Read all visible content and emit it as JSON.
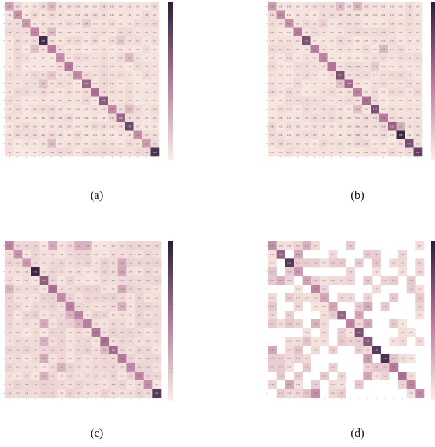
{
  "figure": {
    "panels": [
      {
        "id": "a",
        "caption": "(a)"
      },
      {
        "id": "b",
        "caption": "(b)"
      },
      {
        "id": "c",
        "caption": "(c)"
      },
      {
        "id": "d",
        "caption": "(d)"
      }
    ]
  },
  "colors": {
    "cmap_low": "#faebe3",
    "cmap_mid": "#b7799b",
    "cmap_high": "#2d1e3e"
  },
  "chart_data": [
    {
      "type": "heatmap",
      "id": "a",
      "n": 18,
      "diagonal": [
        0.32,
        0.38,
        0.36,
        0.45,
        0.92,
        0.48,
        0.4,
        0.5,
        0.42,
        0.6,
        0.55,
        0.66,
        0.42,
        0.6,
        0.78,
        0.4,
        0.35,
        0.88
      ],
      "off_diagonal_mean": 0.05,
      "hot_cells": [
        [
          0,
          5,
          0.2
        ],
        [
          3,
          5,
          0.22
        ],
        [
          5,
          3,
          0.18
        ],
        [
          4,
          13,
          0.15
        ],
        [
          9,
          4,
          0.18
        ],
        [
          2,
          9,
          0.14
        ],
        [
          16,
          5,
          0.2
        ],
        [
          6,
          14,
          0.22
        ],
        [
          12,
          14,
          0.22
        ],
        [
          8,
          5,
          0.16
        ]
      ],
      "empty_cells": []
    },
    {
      "type": "heatmap",
      "id": "b",
      "n": 18,
      "diagonal": [
        0.35,
        0.42,
        0.4,
        0.5,
        0.72,
        0.48,
        0.45,
        0.52,
        0.72,
        0.58,
        0.45,
        0.55,
        0.72,
        0.48,
        0.62,
        0.95,
        0.72,
        0.8
      ],
      "off_diagonal_mean": 0.05,
      "hot_cells": [
        [
          0,
          8,
          0.2
        ],
        [
          0,
          10,
          0.22
        ],
        [
          5,
          13,
          0.22
        ],
        [
          9,
          8,
          0.18
        ],
        [
          12,
          10,
          0.18
        ],
        [
          14,
          15,
          0.26
        ],
        [
          7,
          12,
          0.14
        ],
        [
          2,
          6,
          0.12
        ]
      ],
      "empty_cells": []
    },
    {
      "type": "heatmap",
      "id": "c",
      "n": 18,
      "diagonal": [
        0.45,
        0.38,
        0.35,
        0.95,
        0.65,
        0.55,
        0.42,
        0.48,
        0.45,
        0.48,
        0.52,
        0.55,
        0.58,
        0.5,
        0.42,
        0.45,
        0.4,
        0.85
      ],
      "off_diagonal_mean": 0.07,
      "hot_cells": [
        [
          0,
          5,
          0.28
        ],
        [
          0,
          8,
          0.25
        ],
        [
          0,
          9,
          0.25
        ],
        [
          2,
          13,
          0.28
        ],
        [
          3,
          13,
          0.3
        ],
        [
          5,
          13,
          0.3
        ],
        [
          7,
          13,
          0.26
        ],
        [
          9,
          4,
          0.28
        ],
        [
          11,
          4,
          0.25
        ],
        [
          13,
          4,
          0.28
        ],
        [
          15,
          4,
          0.25
        ],
        [
          14,
          6,
          0.25
        ],
        [
          8,
          7,
          0.24
        ],
        [
          9,
          8,
          0.22
        ],
        [
          5,
          0,
          0.25
        ],
        [
          12,
          11,
          0.22
        ]
      ],
      "empty_cells": []
    },
    {
      "type": "heatmap",
      "id": "d",
      "n": 18,
      "diagonal": [
        0.4,
        0.62,
        0.85,
        0.35,
        0.32,
        0.45,
        0.3,
        0.3,
        0.62,
        0.45,
        0.72,
        0.68,
        0.85,
        0.9,
        0.5,
        0.55,
        0.45,
        0.42
      ],
      "off_diagonal_mean": 0.1,
      "hot_cells": [
        [
          0,
          4,
          0.25
        ],
        [
          1,
          3,
          0.3
        ],
        [
          4,
          1,
          0.25
        ],
        [
          7,
          11,
          0.28
        ],
        [
          9,
          11,
          0.3
        ],
        [
          13,
          11,
          0.35
        ],
        [
          15,
          11,
          0.3
        ],
        [
          16,
          2,
          0.3
        ],
        [
          17,
          5,
          0.4
        ],
        [
          8,
          10,
          0.3
        ],
        [
          9,
          5,
          0.25
        ],
        [
          12,
          0,
          0.3
        ]
      ],
      "empty_fraction": 0.5
    }
  ]
}
